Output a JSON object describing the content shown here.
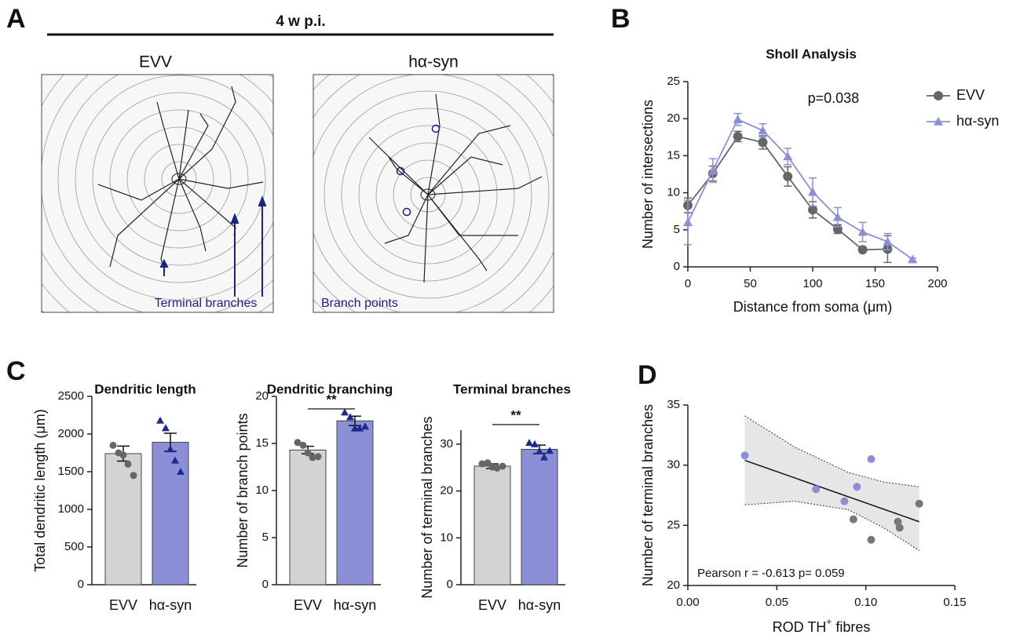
{
  "panels": [
    "A",
    "B",
    "C",
    "D"
  ],
  "panel_a": {
    "title": "4 w p.i.",
    "images": [
      {
        "label": "EVV",
        "annotation": "Terminal branches"
      },
      {
        "label": "hα-syn",
        "annotation": "Branch points"
      }
    ]
  },
  "chart_data": [
    {
      "type": "line",
      "title": "Sholl Analysis",
      "x_label": "Distance from soma (μm)",
      "y_label": "Number of intersections",
      "annotation": "p=0.038",
      "legend": "upper right",
      "xlim": [
        0,
        200
      ],
      "xticks": [
        0,
        50,
        100,
        150,
        200
      ],
      "ylim": [
        0,
        25
      ],
      "yticks": [
        0,
        5,
        10,
        15,
        20,
        25
      ],
      "series": [
        {
          "name": "EVV",
          "color": "#666666",
          "marker": "circle",
          "x": [
            0,
            20,
            40,
            60,
            80,
            100,
            120,
            140,
            160
          ],
          "values": [
            8.3,
            12.6,
            17.6,
            16.8,
            12.2,
            7.7,
            5.1,
            2.3,
            2.4
          ],
          "errors": [
            1.0,
            1.0,
            0.7,
            0.9,
            1.3,
            1.1,
            0.6,
            0.3,
            1.8
          ]
        },
        {
          "name": "hα-syn",
          "color": "#8b8fd6",
          "marker": "triangle",
          "x": [
            0,
            20,
            40,
            60,
            80,
            100,
            120,
            140,
            160,
            180
          ],
          "values": [
            6.0,
            13.0,
            19.9,
            18.4,
            14.9,
            10.1,
            6.7,
            4.7,
            3.4,
            1.0
          ],
          "errors": [
            3.0,
            1.6,
            0.8,
            0.9,
            1.1,
            1.9,
            1.3,
            1.3,
            1.1,
            0.2
          ]
        }
      ]
    },
    {
      "type": "bar",
      "title": "Dendritic length",
      "y_label": "Total dendritic length (μm)",
      "categories": [
        "EVV",
        "hα-syn"
      ],
      "values": [
        1740,
        1890
      ],
      "errors": [
        100,
        120
      ],
      "colors": [
        "#d3d3d3",
        "#8b8fd6"
      ],
      "point_colors": [
        "#666666",
        "#1f2a8c"
      ],
      "points": [
        [
          1850,
          1750,
          1720,
          1600,
          1450
        ],
        [
          2180,
          2080,
          1800,
          1650,
          1500
        ]
      ],
      "ylim": [
        0,
        2500
      ],
      "yticks": [
        0,
        500,
        1000,
        1500,
        2000,
        2500
      ]
    },
    {
      "type": "bar",
      "title": "Dendritic branching",
      "y_label": "Number of branch points",
      "significance": "**",
      "categories": [
        "EVV",
        "hα-syn"
      ],
      "values": [
        14.3,
        17.4
      ],
      "errors": [
        0.4,
        0.5
      ],
      "colors": [
        "#d3d3d3",
        "#8b8fd6"
      ],
      "point_colors": [
        "#666666",
        "#1f2a8c"
      ],
      "points": [
        [
          15.1,
          14.8,
          14.0,
          13.5,
          13.6
        ],
        [
          18.3,
          17.8,
          16.6,
          16.6,
          16.8
        ]
      ],
      "ylim": [
        0,
        20
      ],
      "yticks": [
        0,
        5,
        10,
        15,
        20
      ]
    },
    {
      "type": "bar",
      "title": "Terminal branches",
      "y_label": "Number of terminal branches",
      "significance": "**",
      "categories": [
        "EVV",
        "hα-syn"
      ],
      "values": [
        25.3,
        28.9
      ],
      "errors": [
        0.5,
        0.9
      ],
      "colors": [
        "#d3d3d3",
        "#8b8fd6"
      ],
      "point_colors": [
        "#666666",
        "#1f2a8c"
      ],
      "points": [
        [
          25.8,
          26.0,
          25.1,
          24.9,
          25.3
        ],
        [
          30.3,
          30.0,
          28.5,
          27.2,
          28.6
        ]
      ],
      "ylim": [
        0,
        33
      ],
      "yticks": [
        0,
        10,
        20,
        30
      ]
    },
    {
      "type": "scatter",
      "x_label": [
        "ROD TH",
        "+",
        " fibres"
      ],
      "y_label": "Number of terminal branches",
      "annotation": "Pearson r = -0.613 p= 0.059",
      "xlim": [
        0,
        0.15
      ],
      "xticks": [
        {
          "value": 0,
          "label": "0.00"
        },
        {
          "value": 0.05,
          "label": "0.05"
        },
        {
          "value": 0.1,
          "label": "0.10"
        },
        {
          "value": 0.15,
          "label": "0.15"
        }
      ],
      "ylim": [
        20,
        35
      ],
      "yticks": [
        20,
        25,
        30,
        35
      ],
      "groups": [
        {
          "color": "#8b8fd6",
          "x": [
            0.032,
            0.072,
            0.088,
            0.095,
            0.103
          ],
          "values": [
            30.8,
            28.0,
            27.0,
            28.2,
            30.5
          ]
        },
        {
          "color": "#777777",
          "x": [
            0.093,
            0.103,
            0.118,
            0.119,
            0.13
          ],
          "values": [
            25.5,
            23.8,
            25.3,
            24.8,
            26.8
          ]
        }
      ],
      "fit": {
        "x": [
          0.032,
          0.13
        ],
        "values": [
          30.4,
          25.3
        ]
      },
      "band": {
        "x": [
          0.032,
          0.06,
          0.09,
          0.11,
          0.13
        ],
        "upper": [
          34.1,
          31.5,
          29.4,
          28.6,
          28.2
        ],
        "lower": [
          26.7,
          27.0,
          26.3,
          24.8,
          22.9
        ]
      }
    }
  ]
}
